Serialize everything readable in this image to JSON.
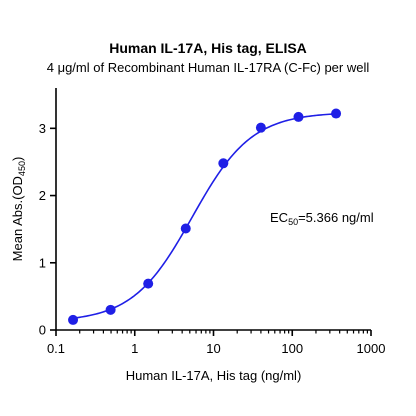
{
  "title": "Human IL-17A, His tag, ELISA",
  "subtitle": "4 μg/ml of Recombinant Human IL-17RA (C-Fc) per well",
  "colors": {
    "series": "#1f1fe6",
    "axis": "#000000"
  },
  "chart_data": {
    "type": "scatter",
    "x_scale": "log",
    "xlabel": "Human IL-17A, His tag (ng/ml)",
    "ylabel": {
      "main": "Mean Abs.(OD",
      "subscript": "450",
      "close": ")"
    },
    "xlim": [
      0.1,
      1000
    ],
    "ylim": [
      0,
      3.6
    ],
    "x_ticks": [
      0.1,
      1,
      10,
      100,
      1000
    ],
    "x_tick_labels": [
      "0.1",
      "1",
      "10",
      "100",
      "1000"
    ],
    "y_ticks": [
      0,
      1,
      2,
      3
    ],
    "y_tick_labels": [
      "0",
      "1",
      "2",
      "3"
    ],
    "grid": false,
    "series": [
      {
        "points": [
          {
            "x": 0.1646,
            "y": 0.15
          },
          {
            "x": 0.4938,
            "y": 0.3
          },
          {
            "x": 1.4815,
            "y": 0.69
          },
          {
            "x": 4.4444,
            "y": 1.51
          },
          {
            "x": 13.333,
            "y": 2.48
          },
          {
            "x": 40,
            "y": 3.01
          },
          {
            "x": 120,
            "y": 3.17
          },
          {
            "x": 360,
            "y": 3.22
          }
        ],
        "fit": {
          "model": "4PL",
          "bottom": 0.12,
          "top": 3.24,
          "ec50": 5.366,
          "hill": 1.15
        }
      }
    ],
    "annotation": {
      "prefix": "EC",
      "subscript": "50",
      "text": "=5.366 ng/ml"
    }
  }
}
